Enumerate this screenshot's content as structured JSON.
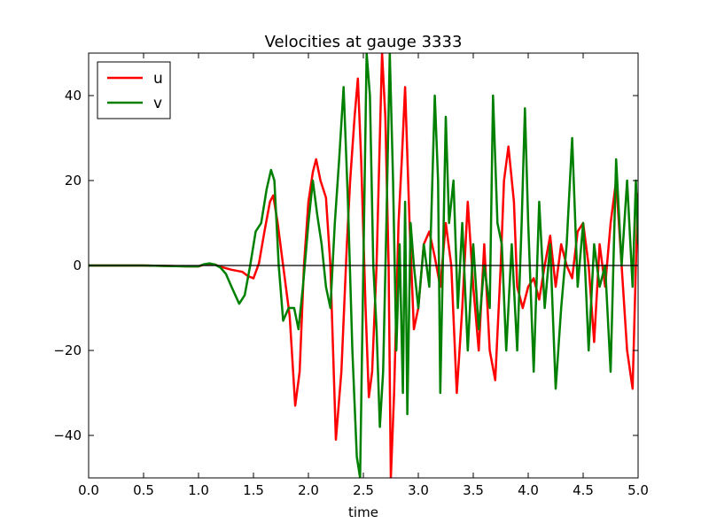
{
  "chart_data": {
    "type": "line",
    "title": "Velocities at gauge 3333",
    "xlabel": "time",
    "ylabel": "",
    "xlim": [
      0,
      5
    ],
    "ylim": [
      -50,
      50
    ],
    "xticks": [
      0.0,
      0.5,
      1.0,
      1.5,
      2.0,
      2.5,
      3.0,
      3.5,
      4.0,
      4.5,
      5.0
    ],
    "xtick_labels": [
      "0.0",
      "0.5",
      "1.0",
      "1.5",
      "2.0",
      "2.5",
      "3.0",
      "3.5",
      "4.0",
      "4.5",
      "5.0"
    ],
    "yticks": [
      -40,
      -20,
      0,
      20,
      40
    ],
    "ytick_labels": [
      "−40",
      "−20",
      "0",
      "20",
      "40"
    ],
    "grid": false,
    "legend_position": "top-left",
    "zero_line": true,
    "series": [
      {
        "name": "u",
        "color": "#ff0000",
        "points": [
          [
            0.0,
            0.0
          ],
          [
            0.5,
            0.0
          ],
          [
            0.9,
            -0.2
          ],
          [
            1.0,
            -0.2
          ],
          [
            1.05,
            0.2
          ],
          [
            1.1,
            0.4
          ],
          [
            1.15,
            0.2
          ],
          [
            1.2,
            -0.3
          ],
          [
            1.3,
            -1.0
          ],
          [
            1.4,
            -1.5
          ],
          [
            1.45,
            -2.5
          ],
          [
            1.5,
            -3.0
          ],
          [
            1.55,
            0.5
          ],
          [
            1.6,
            8.0
          ],
          [
            1.65,
            15.0
          ],
          [
            1.68,
            16.5
          ],
          [
            1.72,
            10.0
          ],
          [
            1.78,
            -2.0
          ],
          [
            1.83,
            -12.0
          ],
          [
            1.88,
            -33.0
          ],
          [
            1.92,
            -25.0
          ],
          [
            1.96,
            0.0
          ],
          [
            2.0,
            15.0
          ],
          [
            2.04,
            22.0
          ],
          [
            2.07,
            25.0
          ],
          [
            2.11,
            20.0
          ],
          [
            2.16,
            16.0
          ],
          [
            2.2,
            0.0
          ],
          [
            2.25,
            -41.0
          ],
          [
            2.3,
            -25.0
          ],
          [
            2.35,
            5.0
          ],
          [
            2.38,
            20.0
          ],
          [
            2.42,
            35.0
          ],
          [
            2.45,
            44.0
          ],
          [
            2.48,
            25.0
          ],
          [
            2.52,
            -10.0
          ],
          [
            2.55,
            -31.0
          ],
          [
            2.58,
            -25.0
          ],
          [
            2.62,
            0.0
          ],
          [
            2.65,
            30.0
          ],
          [
            2.67,
            50.0
          ],
          [
            2.7,
            35.0
          ],
          [
            2.73,
            0.0
          ],
          [
            2.75,
            -50.0
          ],
          [
            2.78,
            -30.0
          ],
          [
            2.82,
            10.0
          ],
          [
            2.85,
            25.0
          ],
          [
            2.88,
            42.0
          ],
          [
            2.92,
            10.0
          ],
          [
            2.96,
            -15.0
          ],
          [
            3.0,
            -10.0
          ],
          [
            3.05,
            5.0
          ],
          [
            3.1,
            8.0
          ],
          [
            3.15,
            2.0
          ],
          [
            3.2,
            -5.0
          ],
          [
            3.25,
            10.0
          ],
          [
            3.3,
            0.0
          ],
          [
            3.35,
            -30.0
          ],
          [
            3.4,
            -10.0
          ],
          [
            3.45,
            15.0
          ],
          [
            3.5,
            -5.0
          ],
          [
            3.55,
            -20.0
          ],
          [
            3.6,
            5.0
          ],
          [
            3.65,
            -20.0
          ],
          [
            3.7,
            -27.0
          ],
          [
            3.75,
            0.0
          ],
          [
            3.78,
            20.0
          ],
          [
            3.82,
            28.0
          ],
          [
            3.87,
            15.0
          ],
          [
            3.9,
            -5.0
          ],
          [
            3.95,
            -10.0
          ],
          [
            4.0,
            -5.0
          ],
          [
            4.05,
            -3.0
          ],
          [
            4.1,
            -8.0
          ],
          [
            4.15,
            0.0
          ],
          [
            4.2,
            7.0
          ],
          [
            4.25,
            -5.0
          ],
          [
            4.3,
            5.0
          ],
          [
            4.35,
            0.0
          ],
          [
            4.4,
            -3.0
          ],
          [
            4.45,
            8.0
          ],
          [
            4.5,
            10.0
          ],
          [
            4.55,
            0.0
          ],
          [
            4.6,
            -18.0
          ],
          [
            4.65,
            5.0
          ],
          [
            4.7,
            -5.0
          ],
          [
            4.75,
            10.0
          ],
          [
            4.8,
            20.0
          ],
          [
            4.85,
            0.0
          ],
          [
            4.9,
            -20.0
          ],
          [
            4.95,
            -29.0
          ],
          [
            4.98,
            0.0
          ],
          [
            5.0,
            17.0
          ]
        ]
      },
      {
        "name": "v",
        "color": "#008000",
        "points": [
          [
            0.0,
            0.0
          ],
          [
            0.5,
            0.0
          ],
          [
            0.9,
            -0.2
          ],
          [
            1.0,
            -0.2
          ],
          [
            1.05,
            0.3
          ],
          [
            1.1,
            0.5
          ],
          [
            1.15,
            0.2
          ],
          [
            1.2,
            -0.5
          ],
          [
            1.25,
            -2.0
          ],
          [
            1.3,
            -5.0
          ],
          [
            1.37,
            -9.0
          ],
          [
            1.42,
            -7.0
          ],
          [
            1.47,
            0.0
          ],
          [
            1.52,
            8.0
          ],
          [
            1.57,
            10.0
          ],
          [
            1.62,
            18.0
          ],
          [
            1.66,
            22.5
          ],
          [
            1.69,
            20.0
          ],
          [
            1.73,
            0.0
          ],
          [
            1.77,
            -13.0
          ],
          [
            1.82,
            -10.0
          ],
          [
            1.87,
            -10.0
          ],
          [
            1.91,
            -15.0
          ],
          [
            1.95,
            -5.0
          ],
          [
            2.0,
            10.0
          ],
          [
            2.04,
            20.0
          ],
          [
            2.08,
            12.0
          ],
          [
            2.12,
            5.0
          ],
          [
            2.16,
            -5.0
          ],
          [
            2.2,
            -10.0
          ],
          [
            2.24,
            10.0
          ],
          [
            2.28,
            25.0
          ],
          [
            2.32,
            42.0
          ],
          [
            2.36,
            15.0
          ],
          [
            2.4,
            -20.0
          ],
          [
            2.44,
            -45.0
          ],
          [
            2.47,
            -50.0
          ],
          [
            2.5,
            0.0
          ],
          [
            2.53,
            50.0
          ],
          [
            2.56,
            40.0
          ],
          [
            2.59,
            0.0
          ],
          [
            2.62,
            -15.0
          ],
          [
            2.65,
            -38.0
          ],
          [
            2.68,
            -25.0
          ],
          [
            2.71,
            10.0
          ],
          [
            2.74,
            50.0
          ],
          [
            2.77,
            20.0
          ],
          [
            2.8,
            -20.0
          ],
          [
            2.83,
            5.0
          ],
          [
            2.86,
            -30.0
          ],
          [
            2.88,
            15.0
          ],
          [
            2.9,
            -35.0
          ],
          [
            2.93,
            10.0
          ],
          [
            2.96,
            0.0
          ],
          [
            3.0,
            -10.0
          ],
          [
            3.05,
            5.0
          ],
          [
            3.1,
            -5.0
          ],
          [
            3.15,
            40.0
          ],
          [
            3.18,
            20.0
          ],
          [
            3.2,
            -30.0
          ],
          [
            3.25,
            35.0
          ],
          [
            3.28,
            10.0
          ],
          [
            3.32,
            20.0
          ],
          [
            3.36,
            -10.0
          ],
          [
            3.4,
            10.0
          ],
          [
            3.45,
            -20.0
          ],
          [
            3.5,
            5.0
          ],
          [
            3.55,
            -15.0
          ],
          [
            3.6,
            0.0
          ],
          [
            3.65,
            -10.0
          ],
          [
            3.68,
            40.0
          ],
          [
            3.72,
            10.0
          ],
          [
            3.76,
            5.0
          ],
          [
            3.8,
            -20.0
          ],
          [
            3.85,
            5.0
          ],
          [
            3.9,
            -20.0
          ],
          [
            3.94,
            10.0
          ],
          [
            3.97,
            37.0
          ],
          [
            4.0,
            10.0
          ],
          [
            4.05,
            -25.0
          ],
          [
            4.1,
            15.0
          ],
          [
            4.15,
            -10.0
          ],
          [
            4.2,
            5.0
          ],
          [
            4.25,
            -29.0
          ],
          [
            4.3,
            -10.0
          ],
          [
            4.35,
            5.0
          ],
          [
            4.4,
            30.0
          ],
          [
            4.45,
            -5.0
          ],
          [
            4.5,
            10.0
          ],
          [
            4.55,
            -20.0
          ],
          [
            4.6,
            5.0
          ],
          [
            4.65,
            -5.0
          ],
          [
            4.7,
            0.0
          ],
          [
            4.75,
            -25.0
          ],
          [
            4.8,
            25.0
          ],
          [
            4.85,
            0.0
          ],
          [
            4.9,
            20.0
          ],
          [
            4.95,
            -5.0
          ],
          [
            4.98,
            20.0
          ],
          [
            5.0,
            5.0
          ]
        ]
      }
    ]
  }
}
